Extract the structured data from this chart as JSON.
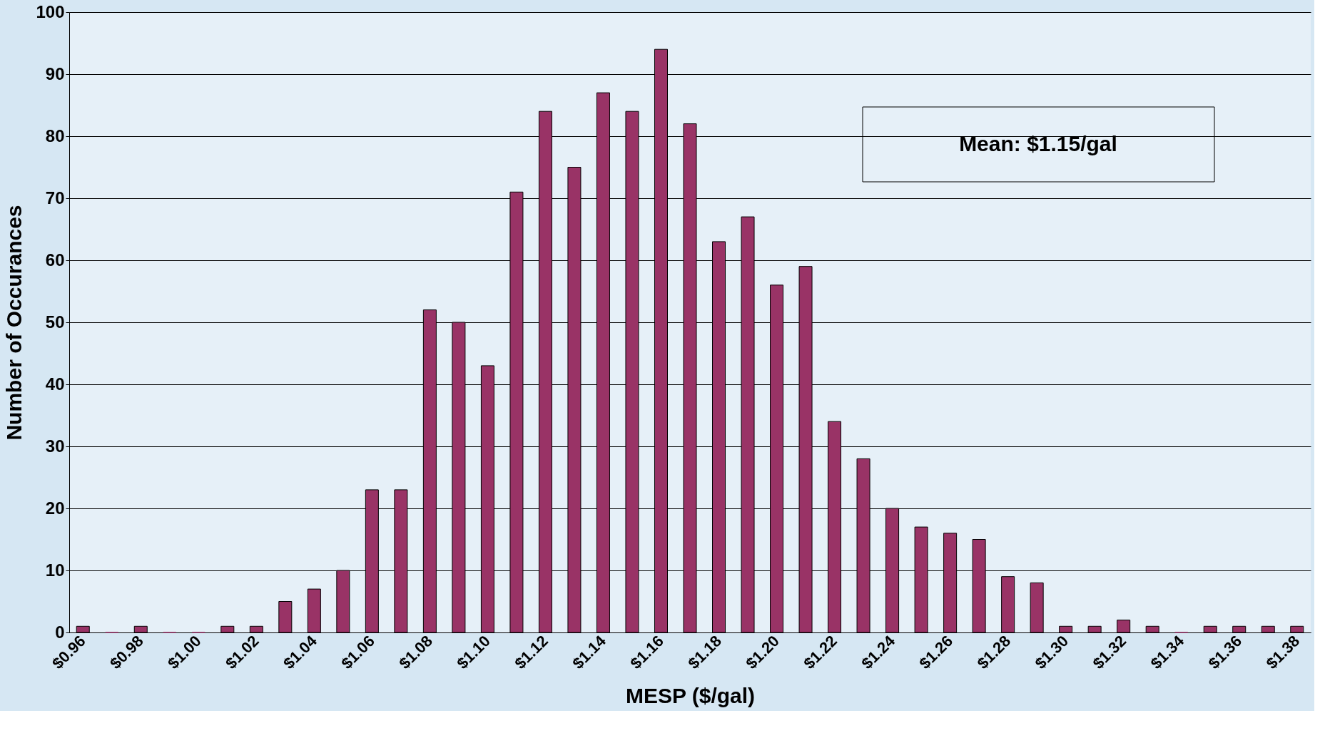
{
  "chart_data": {
    "type": "bar",
    "xlabel": "MESP ($/gal)",
    "ylabel": "Number of Occurances",
    "categories": [
      "$0.96",
      null,
      "$0.98",
      null,
      "$1.00",
      null,
      "$1.02",
      null,
      "$1.04",
      null,
      "$1.06",
      null,
      "$1.08",
      null,
      "$1.10",
      null,
      "$1.12",
      null,
      "$1.14",
      null,
      "$1.16",
      null,
      "$1.18",
      null,
      "$1.20",
      null,
      "$1.22",
      null,
      "$1.24",
      null,
      "$1.26",
      null,
      "$1.28",
      null,
      "$1.30",
      null,
      "$1.32",
      null,
      "$1.34",
      null,
      "$1.36",
      null,
      "$1.38"
    ],
    "values": [
      1,
      0,
      1,
      0,
      0,
      1,
      1,
      5,
      7,
      10,
      23,
      23,
      52,
      50,
      43,
      71,
      84,
      75,
      87,
      84,
      94,
      82,
      63,
      67,
      56,
      59,
      34,
      28,
      20,
      17,
      16,
      15,
      9,
      8,
      1,
      1,
      2,
      1,
      0,
      1,
      1,
      1,
      1
    ],
    "color": "#993366",
    "ylim": [
      0,
      100
    ],
    "yticks": [
      0,
      10,
      20,
      30,
      40,
      50,
      60,
      70,
      80,
      90,
      100
    ],
    "grid": "y",
    "annotations": [
      "Mean:  $1.15/gal"
    ]
  }
}
